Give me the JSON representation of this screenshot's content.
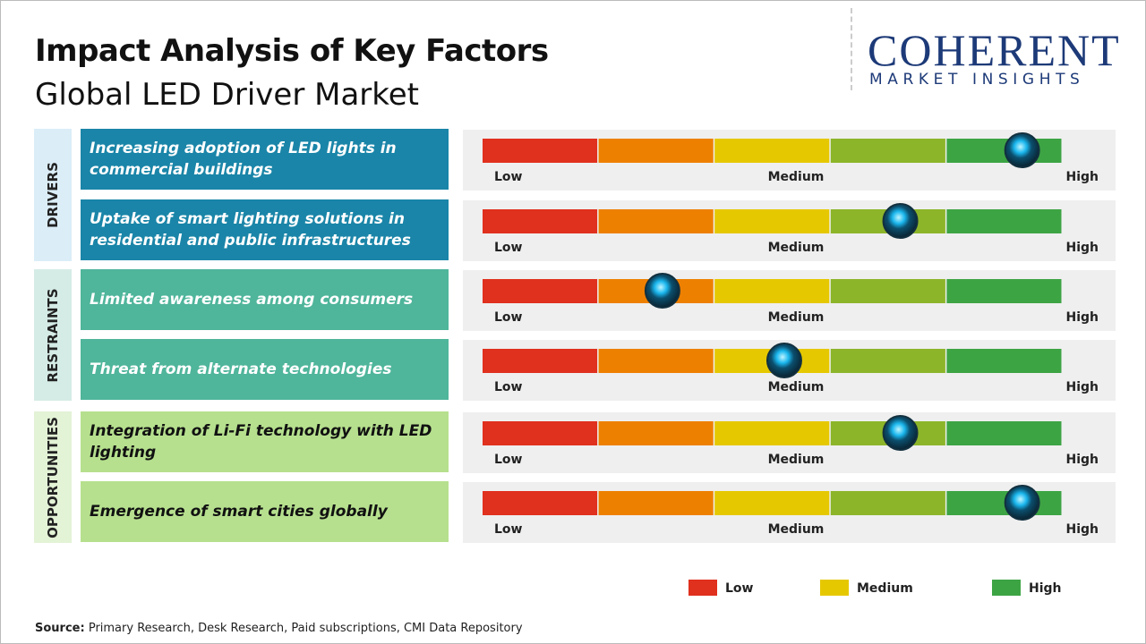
{
  "header": {
    "title": "Impact Analysis of Key Factors",
    "subtitle": "Global LED Driver Market"
  },
  "logo": {
    "name": "COHERENT",
    "tagline": "MARKET INSIGHTS"
  },
  "chart_data": {
    "type": "gauge",
    "xlim": [
      0,
      100
    ],
    "scale_labels": [
      "Low",
      "Medium",
      "High"
    ],
    "segment_colors": [
      "#e0301e",
      "#ee8000",
      "#e6c800",
      "#8db52a",
      "#3da444"
    ],
    "groups": [
      {
        "name": "DRIVERS",
        "color": "#dbeef8",
        "box_color": "#1a85a8",
        "factors": [
          {
            "label": "Increasing adoption of LED lights in commercial buildings",
            "value": 93
          },
          {
            "label": "Uptake of smart lighting solutions in residential and public infrastructures",
            "value": 72
          }
        ]
      },
      {
        "name": "RESTRAINTS",
        "color": "#d5ece6",
        "box_color": "#4fb59b",
        "factors": [
          {
            "label": "Limited awareness among consumers",
            "value": 31
          },
          {
            "label": "Threat from alternate technologies",
            "value": 52
          }
        ]
      },
      {
        "name": "OPPORTUNITIES",
        "color": "#e3f3d6",
        "box_color": "#b6e08e",
        "factors": [
          {
            "label": "Integration of Li-Fi technology with LED lighting",
            "value": 72
          },
          {
            "label": "Emergence of smart cities globally",
            "value": 93
          }
        ]
      }
    ],
    "legend": [
      {
        "name": "Low",
        "color": "#e0301e"
      },
      {
        "name": "Medium",
        "color": "#e6c800"
      },
      {
        "name": "High",
        "color": "#3da444"
      }
    ]
  },
  "source": {
    "label": "Source:",
    "text": "Primary Research, Desk Research, Paid subscriptions, CMI Data Repository"
  }
}
